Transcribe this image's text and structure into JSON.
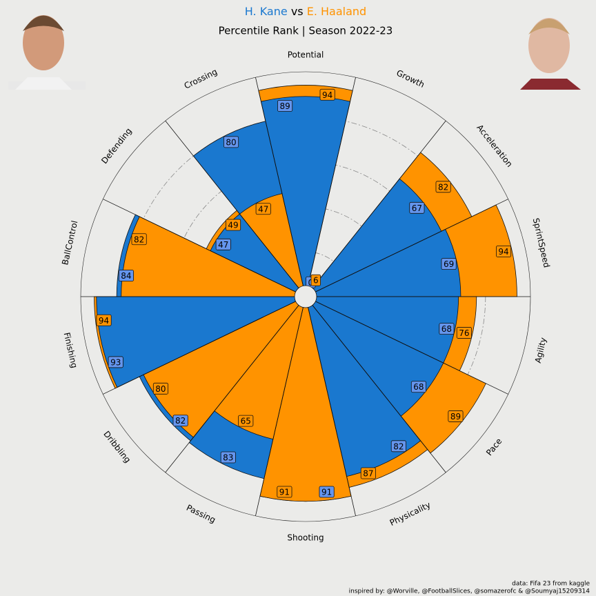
{
  "chart_data": {
    "type": "pizza",
    "title_separator": "vs",
    "subtitle": "Percentile Rank | Season 2022-23",
    "categories": [
      "Potential",
      "Growth",
      "Acceleration",
      "SprintSpeed",
      "Agility",
      "Pace",
      "Physicality",
      "Shooting",
      "Passing",
      "Dribbling",
      "Finishing",
      "BallControl",
      "Defending",
      "Crossing"
    ],
    "series": [
      {
        "name": "H. Kane",
        "color": "#1a78cf",
        "label_color": "#6495ed",
        "values": [
          89,
          0,
          67,
          69,
          68,
          68,
          82,
          91,
          83,
          82,
          93,
          84,
          47,
          80
        ]
      },
      {
        "name": "E. Haaland",
        "color": "#ff9300",
        "label_color": "#ff9300",
        "values": [
          94,
          6,
          82,
          94,
          76,
          89,
          87,
          91,
          65,
          80,
          94,
          82,
          49,
          47
        ]
      }
    ],
    "ylim": [
      0,
      100
    ],
    "yticks": [
      20,
      40,
      60,
      80
    ],
    "grid": true,
    "footnotes": [
      "data: Fifa 23 from kaggle",
      "inspired by: @Worville, @FootballSlices, @somazerofc & @Soumyaj15209314"
    ]
  }
}
